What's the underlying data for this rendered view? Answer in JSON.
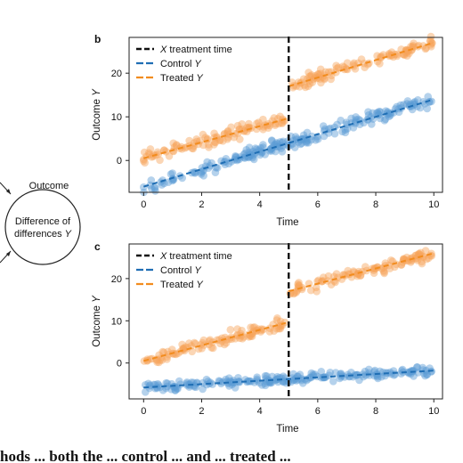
{
  "diagram": {
    "outcome_label": "Outcome",
    "node_line1": "Difference of",
    "node_line2": "differences",
    "node_var": "Y"
  },
  "caption_fragment": "hods ... both the ... control ... and ... treated ...",
  "colors": {
    "treatment": "#111111",
    "control": "#1f6eb4",
    "treated": "#f28c1e",
    "control_point": "#5b9bd5",
    "treated_point": "#f7a55a"
  },
  "chart_data": [
    {
      "panel": "b",
      "type": "scatter",
      "xlabel": "Time",
      "ylabel_var": "Y",
      "ylabel_text": "Outcome",
      "xlim": [
        -0.5,
        10.3
      ],
      "ylim": [
        -7.3,
        28.2
      ],
      "xticks": [
        0,
        2,
        4,
        6,
        8,
        10
      ],
      "yticks": [
        0,
        10,
        20
      ],
      "treatment_time": 5,
      "legend": {
        "position": "top-left",
        "items": [
          {
            "var": "X",
            "text": "treatment time",
            "color": "#111111"
          },
          {
            "var": "",
            "text": "Control",
            "suffix_var": "Y",
            "color": "#1f6eb4"
          },
          {
            "var": "",
            "text": "Treated",
            "suffix_var": "Y",
            "color": "#f28c1e"
          }
        ]
      },
      "series": [
        {
          "name": "Control Y",
          "color": "#1f6eb4",
          "point_color": "#5b9bd5",
          "segments": [
            {
              "x": [
                0,
                5
              ],
              "y": [
                -6,
                4
              ]
            },
            {
              "x": [
                5,
                10
              ],
              "y": [
                4,
                14
              ]
            }
          ],
          "noise": 1.2
        },
        {
          "name": "Treated Y",
          "color": "#f28c1e",
          "point_color": "#f7a55a",
          "segments": [
            {
              "x": [
                0,
                4.9
              ],
              "y": [
                0.5,
                9.5
              ]
            },
            {
              "x": [
                5,
                10
              ],
              "y": [
                17,
                27
              ]
            }
          ],
          "noise": 1.2
        }
      ]
    },
    {
      "panel": "c",
      "type": "scatter",
      "xlabel": "Time",
      "ylabel_var": "Y",
      "ylabel_text": "Outcome",
      "xlim": [
        -0.5,
        10.3
      ],
      "ylim": [
        -8.5,
        28.2
      ],
      "xticks": [
        0,
        2,
        4,
        6,
        8,
        10
      ],
      "yticks": [
        0,
        10,
        20
      ],
      "treatment_time": 5,
      "legend": {
        "position": "top-left",
        "items": [
          {
            "var": "X",
            "text": "treatment time",
            "color": "#111111"
          },
          {
            "var": "",
            "text": "Control",
            "suffix_var": "Y",
            "color": "#1f6eb4"
          },
          {
            "var": "",
            "text": "Treated",
            "suffix_var": "Y",
            "color": "#f28c1e"
          }
        ]
      },
      "series": [
        {
          "name": "Control Y",
          "color": "#1f6eb4",
          "point_color": "#5b9bd5",
          "segments": [
            {
              "x": [
                0,
                10
              ],
              "y": [
                -5.8,
                -1.8
              ]
            }
          ],
          "noise": 1.0
        },
        {
          "name": "Treated Y",
          "color": "#f28c1e",
          "point_color": "#f7a55a",
          "segments": [
            {
              "x": [
                0,
                4.9
              ],
              "y": [
                0.5,
                9.5
              ]
            },
            {
              "x": [
                5,
                10
              ],
              "y": [
                17,
                26
              ]
            }
          ],
          "noise": 1.2
        }
      ]
    }
  ]
}
